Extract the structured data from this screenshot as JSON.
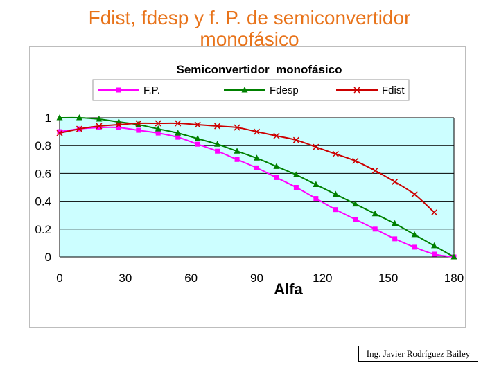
{
  "slide": {
    "title_line1": "Fdist, fdesp y f. P. de semiconvertidor",
    "title_line2": "monofásico",
    "credit": "Ing. Javier Rodríguez Bailey"
  },
  "colors": {
    "title": "#e8731a",
    "plot_background": "#ccfeff",
    "fp": "#ff00ff",
    "fdesp": "#008000",
    "fdist": "#cc0000"
  },
  "chart_data": {
    "type": "line",
    "title": "Semiconvertidor  monofásico",
    "xlabel": "Alfa",
    "ylabel": "",
    "xlim": [
      0,
      180
    ],
    "ylim": [
      0,
      1
    ],
    "xticks": [
      "0",
      "30",
      "60",
      "90",
      "120",
      "150",
      "180"
    ],
    "yticks": [
      "0",
      "0.2",
      "0.4",
      "0.6",
      "0.8",
      "1"
    ],
    "grid": true,
    "legend_position": "top",
    "series": [
      {
        "name": "F.P.",
        "marker": "square",
        "color": "#ff00ff",
        "x": [
          0,
          9,
          18,
          27,
          36,
          45,
          54,
          63,
          72,
          81,
          90,
          99,
          108,
          117,
          126,
          135,
          144,
          153,
          162,
          171,
          180
        ],
        "y": [
          0.9,
          0.92,
          0.93,
          0.93,
          0.91,
          0.89,
          0.86,
          0.81,
          0.76,
          0.7,
          0.64,
          0.57,
          0.5,
          0.42,
          0.34,
          0.27,
          0.2,
          0.13,
          0.07,
          0.02,
          0.0
        ]
      },
      {
        "name": "Fdesp",
        "marker": "triangle",
        "color": "#008000",
        "x": [
          0,
          9,
          18,
          27,
          36,
          45,
          54,
          63,
          72,
          81,
          90,
          99,
          108,
          117,
          126,
          135,
          144,
          153,
          162,
          171,
          180
        ],
        "y": [
          1.0,
          1.0,
          0.99,
          0.97,
          0.95,
          0.92,
          0.89,
          0.85,
          0.81,
          0.76,
          0.71,
          0.65,
          0.59,
          0.52,
          0.45,
          0.38,
          0.31,
          0.24,
          0.16,
          0.08,
          0.0
        ]
      },
      {
        "name": "Fdist",
        "marker": "x",
        "color": "#cc0000",
        "x": [
          0,
          9,
          18,
          27,
          36,
          45,
          54,
          63,
          72,
          81,
          90,
          99,
          108,
          117,
          126,
          135,
          144,
          153,
          162,
          171
        ],
        "y": [
          0.89,
          0.92,
          0.94,
          0.95,
          0.96,
          0.96,
          0.96,
          0.95,
          0.94,
          0.93,
          0.9,
          0.87,
          0.84,
          0.79,
          0.74,
          0.69,
          0.62,
          0.54,
          0.45,
          0.32
        ]
      }
    ]
  }
}
